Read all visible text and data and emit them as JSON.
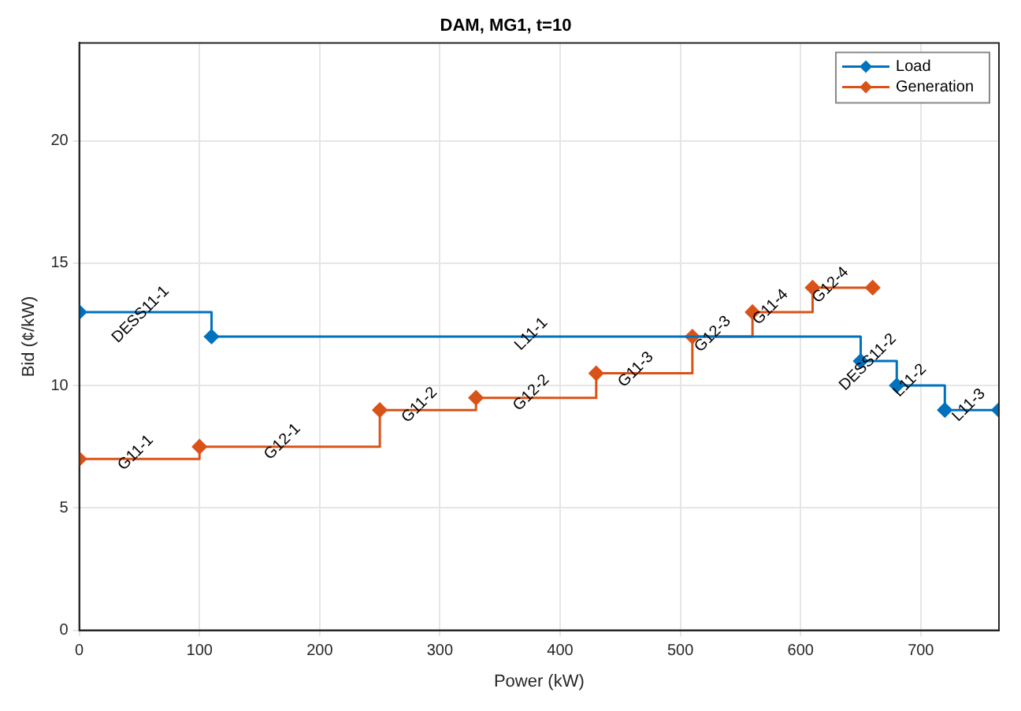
{
  "chart_data": {
    "type": "step",
    "title": "DAM, MG1, t=10",
    "xlabel": "Power (kW)",
    "ylabel": "Bid (¢/kW)",
    "series": [
      {
        "name": "Load",
        "color": "#0072bd",
        "x": [
          0,
          110,
          650,
          680,
          720,
          765
        ],
        "values": [
          13,
          12,
          11,
          10,
          9,
          9
        ]
      },
      {
        "name": "Generation",
        "color": "#d95319",
        "x": [
          0,
          100,
          250,
          330,
          430,
          510,
          560,
          610,
          660
        ],
        "values": [
          7,
          7.5,
          9,
          9.5,
          10.5,
          12,
          13,
          14,
          14
        ]
      }
    ],
    "xlim": [
      0,
      765
    ],
    "xticks": [
      0,
      100,
      200,
      300,
      400,
      500,
      600,
      700
    ],
    "ylim": [
      0,
      24
    ],
    "yticks": [
      0,
      5,
      10,
      15,
      20
    ],
    "grid": true,
    "legend": "top right",
    "marker": "diamond",
    "line_style": "solid",
    "annotations": [
      {
        "text": "DESS11-1",
        "x": 51,
        "y": 12.9
      },
      {
        "text": "L11-1",
        "x": 376,
        "y": 12.1
      },
      {
        "text": "G11-1",
        "x": 47,
        "y": 7.25
      },
      {
        "text": "G12-1",
        "x": 169,
        "y": 7.7
      },
      {
        "text": "G11-2",
        "x": 283,
        "y": 9.2
      },
      {
        "text": "G12-2",
        "x": 376,
        "y": 9.7
      },
      {
        "text": "G11-3",
        "x": 463,
        "y": 10.65
      },
      {
        "text": "G12-3",
        "x": 527,
        "y": 12.1
      },
      {
        "text": "G11-4",
        "x": 575,
        "y": 13.2
      },
      {
        "text": "G12-4",
        "x": 625,
        "y": 14.1
      },
      {
        "text": "DESS11-2",
        "x": 656,
        "y": 10.95
      },
      {
        "text": "L11-2",
        "x": 691,
        "y": 10.2
      },
      {
        "text": "L11-3",
        "x": 740,
        "y": 9.2
      }
    ]
  }
}
